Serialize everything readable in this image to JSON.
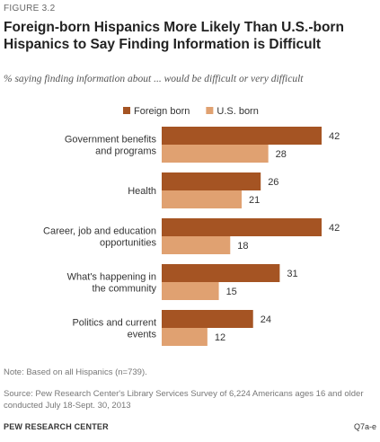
{
  "figure_label": "FIGURE 3.2",
  "chart_data": {
    "type": "bar",
    "orientation": "horizontal",
    "title": "Foreign-born  Hispanics More Likely Than U.S.-born Hispanics to Say Finding Information  is Difficult",
    "subtitle": "% saying finding information about ... would be difficult or very difficult",
    "categories": [
      [
        "Government benefits",
        "and programs"
      ],
      [
        "Health"
      ],
      [
        "Career, job and education",
        "opportunities"
      ],
      [
        "What's happening in",
        "the community"
      ],
      [
        "Politics and current",
        "events"
      ]
    ],
    "series": [
      {
        "name": "Foreign born",
        "color": "#A55423",
        "values": [
          42,
          26,
          42,
          31,
          24
        ]
      },
      {
        "name": "U.S. born",
        "color": "#E0A171",
        "values": [
          28,
          21,
          18,
          15,
          12
        ]
      }
    ],
    "xlim": [
      0,
      42
    ],
    "legend_position": "top",
    "grid": false
  },
  "note": "Note: Based on all Hispanics (n=739).",
  "source": "Source: Pew Research Center's Library Services Survey of 6,224 Americans ages 16 and older conducted July 18-Sept. 30, 2013",
  "org": "PEW RESEARCH CENTER",
  "question_ref": "Q7a-e"
}
